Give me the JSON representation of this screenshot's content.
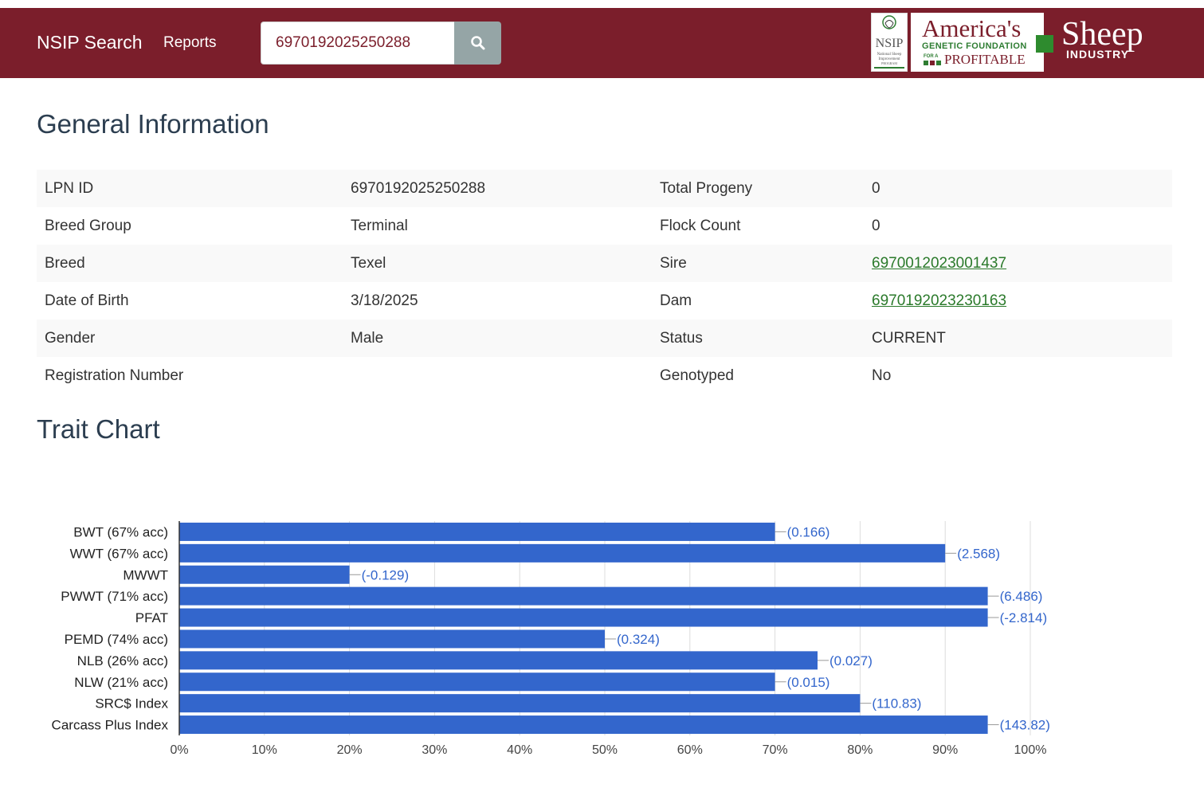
{
  "nav": {
    "brand": "NSIP Search",
    "reports": "Reports",
    "search_value": "6970192025250288"
  },
  "logos": {
    "nsip_text": "NSIP",
    "nsip_small": [
      "National Sheep",
      "Improvement",
      "PROGRAM"
    ],
    "agf_line1": "America's",
    "agf_line2": "GENETIC FOUNDATION",
    "agf_for": "FOR A",
    "agf_line3": "PROFITABLE",
    "sheep": "Sheep",
    "industry": "INDUSTRY"
  },
  "general": {
    "title": "General Information",
    "rows": [
      {
        "l1": "LPN ID",
        "v1": "6970192025250288",
        "l2": "Total Progeny",
        "v2": "0"
      },
      {
        "l1": "Breed Group",
        "v1": "Terminal",
        "l2": "Flock Count",
        "v2": "0"
      },
      {
        "l1": "Breed",
        "v1": "Texel",
        "l2": "Sire",
        "v2": "6970012023001437"
      },
      {
        "l1": "Date of Birth",
        "v1": "3/18/2025",
        "l2": "Dam",
        "v2": "6970192023230163"
      },
      {
        "l1": "Gender",
        "v1": "Male",
        "l2": "Status",
        "v2": "CURRENT"
      },
      {
        "l1": "Registration Number",
        "v1": "",
        "l2": "Genotyped",
        "v2": "No"
      }
    ]
  },
  "trait": {
    "title": "Trait Chart"
  },
  "chart_data": {
    "type": "bar",
    "orientation": "horizontal",
    "categories": [
      "BWT (67% acc)",
      "WWT (67% acc)",
      "MWWT",
      "PWWT (71% acc)",
      "PFAT",
      "PEMD (74% acc)",
      "NLB (26% acc)",
      "NLW (21% acc)",
      "SRC$ Index",
      "Carcass Plus Index"
    ],
    "values": [
      70,
      90,
      20,
      95,
      95,
      50,
      75,
      70,
      80,
      95
    ],
    "labels": [
      "(0.166)",
      "(2.568)",
      "(-0.129)",
      "(6.486)",
      "(-2.814)",
      "(0.324)",
      "(0.027)",
      "(0.015)",
      "(110.83)",
      "(143.82)"
    ],
    "xlim": [
      0,
      100
    ],
    "xticks": [
      "0%",
      "10%",
      "20%",
      "30%",
      "40%",
      "50%",
      "60%",
      "70%",
      "80%",
      "90%",
      "100%"
    ],
    "bar_color": "#3366cc",
    "label_color": "#3366cc",
    "grid": true
  }
}
